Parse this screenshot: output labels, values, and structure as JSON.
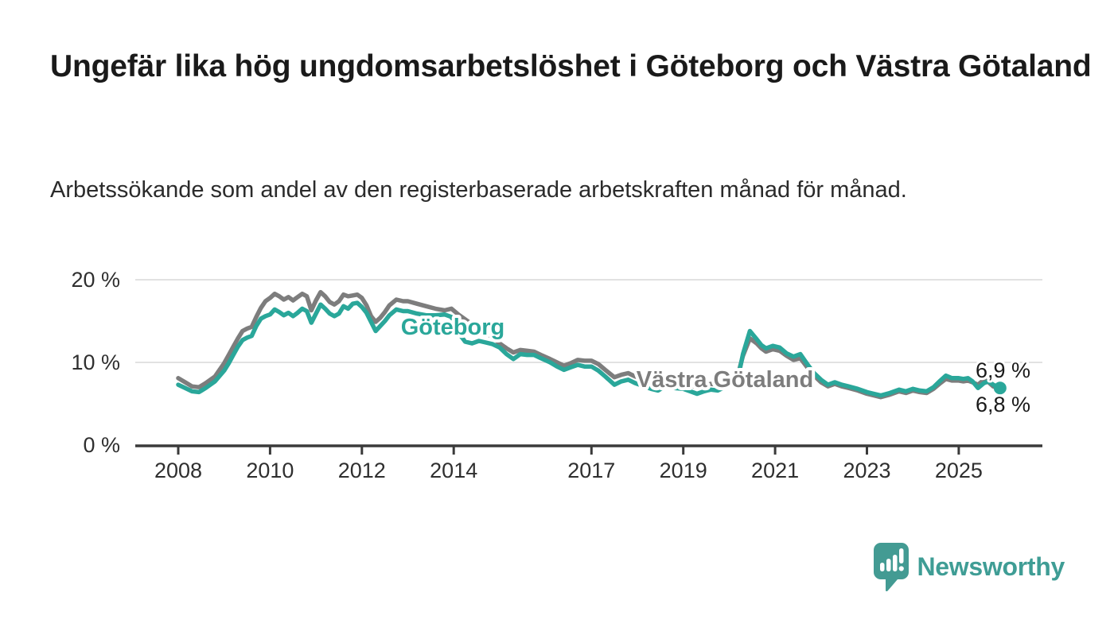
{
  "title": "Ungefär lika hög ungdomsarbetslöshet i Göteborg och Västra Götaland",
  "subtitle": "Arbetssökande som andel av den registerbaserade arbetskraften månad för månad.",
  "colors": {
    "goteborg": "#2aa79a",
    "vastra_gotaland": "#7d7d7d",
    "axis": "#3a3a3a",
    "gridline": "#d9d9d9",
    "logo": "#439b93"
  },
  "logo": {
    "text": "Newsworthy"
  },
  "chart_data": {
    "type": "line",
    "title": "Ungefär lika hög ungdomsarbetslöshet i Göteborg och Västra Götaland",
    "subtitle": "Arbetssökande som andel av den registerbaserade arbetskraften månad för månad.",
    "unit": "%",
    "ylim": [
      0,
      21
    ],
    "xlim": [
      2007.1,
      2026.8
    ],
    "grid": "horizontal",
    "y_axis": [
      {
        "value": 20,
        "label": "20 %"
      },
      {
        "value": 10,
        "label": "10 %"
      },
      {
        "value": 0,
        "label": "0 %"
      }
    ],
    "x_axis": [
      {
        "year": 2008,
        "label": "2008"
      },
      {
        "year": 2010,
        "label": "2010"
      },
      {
        "year": 2012,
        "label": "2012"
      },
      {
        "year": 2014,
        "label": "2014"
      },
      {
        "year": 2017,
        "label": "2017"
      },
      {
        "year": 2019,
        "label": "2019"
      },
      {
        "year": 2021,
        "label": "2021"
      },
      {
        "year": 2023,
        "label": "2023"
      },
      {
        "year": 2025,
        "label": "2025"
      }
    ],
    "series": [
      {
        "name": "Göteborg",
        "end_label": "6,9 %",
        "end_value": 6.9,
        "points": [
          [
            2008.0,
            7.3
          ],
          [
            2008.15,
            6.9
          ],
          [
            2008.3,
            6.5
          ],
          [
            2008.45,
            6.4
          ],
          [
            2008.6,
            6.9
          ],
          [
            2008.8,
            7.7
          ],
          [
            2009.0,
            9.0
          ],
          [
            2009.1,
            9.9
          ],
          [
            2009.2,
            10.9
          ],
          [
            2009.3,
            11.9
          ],
          [
            2009.4,
            12.7
          ],
          [
            2009.5,
            13.0
          ],
          [
            2009.6,
            13.2
          ],
          [
            2009.7,
            14.4
          ],
          [
            2009.8,
            15.3
          ],
          [
            2009.9,
            15.6
          ],
          [
            2010.0,
            15.8
          ],
          [
            2010.1,
            16.4
          ],
          [
            2010.2,
            16.1
          ],
          [
            2010.3,
            15.7
          ],
          [
            2010.4,
            16.0
          ],
          [
            2010.5,
            15.6
          ],
          [
            2010.6,
            16.0
          ],
          [
            2010.7,
            16.5
          ],
          [
            2010.8,
            16.2
          ],
          [
            2010.9,
            14.8
          ],
          [
            2011.0,
            15.9
          ],
          [
            2011.1,
            17.0
          ],
          [
            2011.2,
            16.5
          ],
          [
            2011.3,
            15.9
          ],
          [
            2011.4,
            15.6
          ],
          [
            2011.5,
            15.9
          ],
          [
            2011.6,
            16.8
          ],
          [
            2011.7,
            16.5
          ],
          [
            2011.8,
            17.1
          ],
          [
            2011.9,
            17.2
          ],
          [
            2012.0,
            16.7
          ],
          [
            2012.1,
            16.0
          ],
          [
            2012.2,
            14.9
          ],
          [
            2012.3,
            13.8
          ],
          [
            2012.4,
            14.4
          ],
          [
            2012.5,
            15.0
          ],
          [
            2012.6,
            15.7
          ],
          [
            2012.75,
            16.4
          ],
          [
            2012.9,
            16.2
          ],
          [
            2013.0,
            16.2
          ],
          [
            2013.2,
            15.9
          ],
          [
            2013.4,
            15.7
          ],
          [
            2013.6,
            15.7
          ],
          [
            2013.8,
            15.8
          ],
          [
            2013.95,
            15.5
          ],
          [
            2014.1,
            13.6
          ],
          [
            2014.25,
            12.5
          ],
          [
            2014.4,
            12.3
          ],
          [
            2014.55,
            12.6
          ],
          [
            2014.7,
            12.4
          ],
          [
            2014.85,
            12.2
          ],
          [
            2015.0,
            11.8
          ],
          [
            2015.15,
            11.0
          ],
          [
            2015.3,
            10.4
          ],
          [
            2015.45,
            11.0
          ],
          [
            2015.6,
            10.9
          ],
          [
            2015.75,
            10.9
          ],
          [
            2015.9,
            10.5
          ],
          [
            2016.1,
            10.0
          ],
          [
            2016.25,
            9.5
          ],
          [
            2016.4,
            9.1
          ],
          [
            2016.55,
            9.4
          ],
          [
            2016.7,
            9.7
          ],
          [
            2016.85,
            9.5
          ],
          [
            2017.0,
            9.5
          ],
          [
            2017.15,
            9.0
          ],
          [
            2017.3,
            8.3
          ],
          [
            2017.5,
            7.3
          ],
          [
            2017.65,
            7.7
          ],
          [
            2017.8,
            7.9
          ],
          [
            2017.95,
            7.5
          ],
          [
            2018.1,
            7.2
          ],
          [
            2018.3,
            6.8
          ],
          [
            2018.45,
            6.6
          ],
          [
            2018.6,
            7.1
          ],
          [
            2018.8,
            6.9
          ],
          [
            2019.0,
            6.8
          ],
          [
            2019.15,
            6.5
          ],
          [
            2019.3,
            6.2
          ],
          [
            2019.45,
            6.5
          ],
          [
            2019.6,
            6.7
          ],
          [
            2019.75,
            6.6
          ],
          [
            2019.9,
            7.0
          ],
          [
            2020.05,
            7.4
          ],
          [
            2020.2,
            8.3
          ],
          [
            2020.3,
            11.0
          ],
          [
            2020.45,
            13.8
          ],
          [
            2020.6,
            12.8
          ],
          [
            2020.7,
            12.1
          ],
          [
            2020.8,
            11.7
          ],
          [
            2020.95,
            12.0
          ],
          [
            2021.1,
            11.8
          ],
          [
            2021.25,
            11.1
          ],
          [
            2021.4,
            10.7
          ],
          [
            2021.55,
            11.0
          ],
          [
            2021.7,
            9.8
          ],
          [
            2021.85,
            8.7
          ],
          [
            2022.0,
            7.9
          ],
          [
            2022.15,
            7.3
          ],
          [
            2022.3,
            7.6
          ],
          [
            2022.45,
            7.3
          ],
          [
            2022.6,
            7.1
          ],
          [
            2022.8,
            6.8
          ],
          [
            2023.0,
            6.4
          ],
          [
            2023.15,
            6.2
          ],
          [
            2023.3,
            6.0
          ],
          [
            2023.5,
            6.3
          ],
          [
            2023.7,
            6.7
          ],
          [
            2023.85,
            6.5
          ],
          [
            2024.0,
            6.8
          ],
          [
            2024.15,
            6.6
          ],
          [
            2024.3,
            6.5
          ],
          [
            2024.45,
            7.0
          ],
          [
            2024.6,
            7.8
          ],
          [
            2024.72,
            8.4
          ],
          [
            2024.85,
            8.1
          ],
          [
            2025.0,
            8.1
          ],
          [
            2025.1,
            8.0
          ],
          [
            2025.2,
            8.1
          ],
          [
            2025.3,
            7.7
          ],
          [
            2025.42,
            6.9
          ],
          [
            2025.55,
            7.5
          ],
          [
            2025.65,
            7.7
          ],
          [
            2025.75,
            7.3
          ],
          [
            2025.9,
            6.9
          ]
        ]
      },
      {
        "name": "Västra Götaland",
        "end_label": "6,8 %",
        "end_value": 6.8,
        "points": [
          [
            2008.0,
            8.1
          ],
          [
            2008.15,
            7.6
          ],
          [
            2008.3,
            7.1
          ],
          [
            2008.45,
            7.0
          ],
          [
            2008.6,
            7.5
          ],
          [
            2008.8,
            8.3
          ],
          [
            2009.0,
            9.9
          ],
          [
            2009.1,
            10.9
          ],
          [
            2009.2,
            11.9
          ],
          [
            2009.3,
            12.9
          ],
          [
            2009.4,
            13.8
          ],
          [
            2009.5,
            14.1
          ],
          [
            2009.6,
            14.3
          ],
          [
            2009.7,
            15.5
          ],
          [
            2009.8,
            16.6
          ],
          [
            2009.9,
            17.4
          ],
          [
            2010.0,
            17.8
          ],
          [
            2010.1,
            18.3
          ],
          [
            2010.2,
            18.0
          ],
          [
            2010.3,
            17.6
          ],
          [
            2010.4,
            17.9
          ],
          [
            2010.5,
            17.5
          ],
          [
            2010.6,
            17.9
          ],
          [
            2010.7,
            18.3
          ],
          [
            2010.8,
            18.0
          ],
          [
            2010.9,
            16.3
          ],
          [
            2011.0,
            17.5
          ],
          [
            2011.1,
            18.5
          ],
          [
            2011.2,
            18.0
          ],
          [
            2011.3,
            17.3
          ],
          [
            2011.4,
            17.0
          ],
          [
            2011.5,
            17.4
          ],
          [
            2011.6,
            18.2
          ],
          [
            2011.7,
            18.0
          ],
          [
            2011.8,
            18.1
          ],
          [
            2011.9,
            18.2
          ],
          [
            2012.0,
            17.8
          ],
          [
            2012.1,
            16.9
          ],
          [
            2012.2,
            15.6
          ],
          [
            2012.3,
            14.9
          ],
          [
            2012.4,
            15.4
          ],
          [
            2012.5,
            16.1
          ],
          [
            2012.6,
            16.9
          ],
          [
            2012.75,
            17.6
          ],
          [
            2012.9,
            17.4
          ],
          [
            2013.0,
            17.4
          ],
          [
            2013.2,
            17.1
          ],
          [
            2013.4,
            16.8
          ],
          [
            2013.6,
            16.5
          ],
          [
            2013.8,
            16.3
          ],
          [
            2013.95,
            16.5
          ],
          [
            2014.1,
            15.8
          ],
          [
            2014.25,
            15.2
          ],
          [
            2014.4,
            14.6
          ],
          [
            2014.55,
            14.1
          ],
          [
            2014.7,
            13.6
          ],
          [
            2014.85,
            13.0
          ],
          [
            2015.0,
            12.3
          ],
          [
            2015.15,
            11.7
          ],
          [
            2015.3,
            11.2
          ],
          [
            2015.45,
            11.5
          ],
          [
            2015.6,
            11.4
          ],
          [
            2015.75,
            11.3
          ],
          [
            2015.9,
            10.9
          ],
          [
            2016.1,
            10.4
          ],
          [
            2016.25,
            10.0
          ],
          [
            2016.4,
            9.6
          ],
          [
            2016.55,
            9.9
          ],
          [
            2016.7,
            10.3
          ],
          [
            2016.85,
            10.2
          ],
          [
            2017.0,
            10.2
          ],
          [
            2017.15,
            9.8
          ],
          [
            2017.3,
            9.1
          ],
          [
            2017.5,
            8.2
          ],
          [
            2017.65,
            8.5
          ],
          [
            2017.8,
            8.7
          ],
          [
            2017.95,
            8.3
          ],
          [
            2018.1,
            8.0
          ],
          [
            2018.3,
            7.6
          ],
          [
            2018.45,
            7.4
          ],
          [
            2018.6,
            7.8
          ],
          [
            2018.8,
            7.6
          ],
          [
            2019.0,
            7.5
          ],
          [
            2019.15,
            7.2
          ],
          [
            2019.3,
            7.0
          ],
          [
            2019.45,
            7.2
          ],
          [
            2019.6,
            7.4
          ],
          [
            2019.75,
            7.3
          ],
          [
            2019.9,
            7.6
          ],
          [
            2020.05,
            7.9
          ],
          [
            2020.2,
            8.7
          ],
          [
            2020.3,
            10.8
          ],
          [
            2020.45,
            12.9
          ],
          [
            2020.6,
            12.3
          ],
          [
            2020.7,
            11.7
          ],
          [
            2020.8,
            11.3
          ],
          [
            2020.95,
            11.6
          ],
          [
            2021.1,
            11.4
          ],
          [
            2021.25,
            10.8
          ],
          [
            2021.4,
            10.3
          ],
          [
            2021.55,
            10.5
          ],
          [
            2021.7,
            9.4
          ],
          [
            2021.85,
            8.4
          ],
          [
            2022.0,
            7.6
          ],
          [
            2022.15,
            7.1
          ],
          [
            2022.3,
            7.4
          ],
          [
            2022.45,
            7.1
          ],
          [
            2022.6,
            6.9
          ],
          [
            2022.8,
            6.6
          ],
          [
            2023.0,
            6.2
          ],
          [
            2023.15,
            6.0
          ],
          [
            2023.3,
            5.8
          ],
          [
            2023.5,
            6.1
          ],
          [
            2023.7,
            6.5
          ],
          [
            2023.85,
            6.3
          ],
          [
            2024.0,
            6.6
          ],
          [
            2024.15,
            6.4
          ],
          [
            2024.3,
            6.3
          ],
          [
            2024.45,
            6.8
          ],
          [
            2024.6,
            7.5
          ],
          [
            2024.72,
            8.0
          ],
          [
            2024.85,
            7.8
          ],
          [
            2025.0,
            7.8
          ],
          [
            2025.1,
            7.7
          ],
          [
            2025.2,
            7.8
          ],
          [
            2025.3,
            7.6
          ],
          [
            2025.42,
            7.3
          ],
          [
            2025.55,
            7.9
          ],
          [
            2025.65,
            7.6
          ],
          [
            2025.75,
            7.1
          ],
          [
            2025.9,
            6.8
          ]
        ]
      }
    ]
  }
}
